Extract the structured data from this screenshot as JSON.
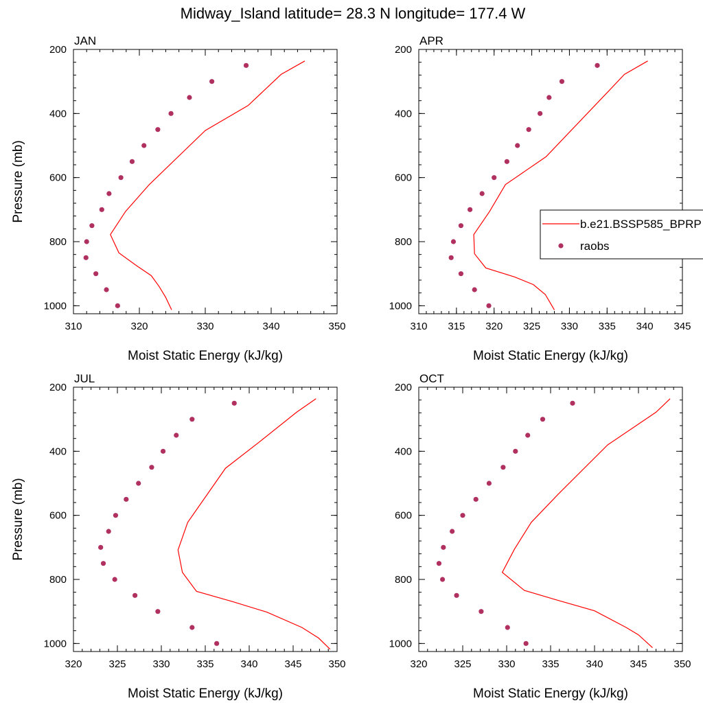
{
  "title": "Midway_Island  latitude= 28.3 N longitude= 177.4 W",
  "colors": {
    "model_line": "#ff0000",
    "raobs_marker": "#b03060",
    "axis": "#000000"
  },
  "legend": {
    "entries": [
      {
        "label": "b.e21.BSSP585_BPRP",
        "style": "line"
      },
      {
        "label": "raobs",
        "style": "marker"
      }
    ]
  },
  "chart_data": [
    {
      "type": "line",
      "panel": "JAN",
      "xlabel": "Moist Static Energy (kJ/kg)",
      "ylabel": "Pressure (mb)",
      "xlim": [
        310,
        350
      ],
      "ylim": [
        200,
        1025
      ],
      "y_reversed": true,
      "xticks": [
        310,
        320,
        330,
        340,
        350
      ],
      "yticks": [
        200,
        400,
        600,
        800,
        1000
      ],
      "series": [
        {
          "name": "b.e21.BSSP585_BPRP",
          "style": "line",
          "x": [
            345.1,
            341.5,
            336.5,
            330.0,
            321.5,
            317.9,
            315.6,
            316.9,
            319.5,
            321.8,
            323.0,
            324.0,
            324.9
          ],
          "y": [
            236,
            278,
            375,
            453,
            622,
            706,
            778,
            835,
            874,
            906,
            940,
            974,
            1013
          ]
        },
        {
          "name": "raobs",
          "style": "marker",
          "x": [
            336.2,
            331.0,
            327.6,
            324.8,
            322.8,
            320.7,
            318.9,
            317.2,
            315.4,
            314.3,
            312.8,
            312.0,
            311.9,
            313.4,
            315.0,
            316.7
          ],
          "y": [
            250,
            300,
            350,
            400,
            450,
            500,
            550,
            600,
            650,
            700,
            750,
            800,
            850,
            900,
            950,
            1000
          ]
        }
      ]
    },
    {
      "type": "line",
      "panel": "APR",
      "xlabel": "Moist Static Energy (kJ/kg)",
      "ylabel": "",
      "xlim": [
        310,
        345
      ],
      "ylim": [
        200,
        1025
      ],
      "y_reversed": true,
      "xticks": [
        310,
        315,
        320,
        325,
        330,
        335,
        340,
        345
      ],
      "yticks": [
        200,
        400,
        600,
        800,
        1000
      ],
      "series": [
        {
          "name": "b.e21.BSSP585_BPRP",
          "style": "line",
          "x": [
            340.4,
            337.3,
            335.2,
            326.9,
            321.5,
            319.4,
            317.3,
            317.4,
            318.9,
            322.7,
            325.2,
            326.8,
            328.0
          ],
          "y": [
            236,
            278,
            330,
            535,
            622,
            706,
            778,
            838,
            882,
            910,
            934,
            965,
            1013
          ]
        },
        {
          "name": "raobs",
          "style": "marker",
          "x": [
            333.7,
            329.0,
            327.3,
            326.1,
            324.6,
            323.1,
            321.7,
            320.0,
            318.4,
            316.8,
            315.6,
            314.6,
            314.3,
            315.6,
            317.4,
            319.3
          ],
          "y": [
            250,
            300,
            350,
            400,
            450,
            500,
            550,
            600,
            650,
            700,
            750,
            800,
            850,
            900,
            950,
            1000
          ]
        }
      ]
    },
    {
      "type": "line",
      "panel": "JUL",
      "xlabel": "Moist Static Energy (kJ/kg)",
      "ylabel": "Pressure (mb)",
      "xlim": [
        320,
        350
      ],
      "ylim": [
        200,
        1025
      ],
      "y_reversed": true,
      "xticks": [
        320,
        325,
        330,
        335,
        340,
        345,
        350
      ],
      "yticks": [
        200,
        400,
        600,
        800,
        1000
      ],
      "series": [
        {
          "name": "b.e21.BSSP585_BPRP",
          "style": "line",
          "x": [
            347.6,
            345.4,
            341.1,
            337.3,
            333.0,
            331.9,
            332.4,
            334.0,
            338.2,
            342.0,
            346.0,
            347.9,
            349.2
          ],
          "y": [
            236,
            278,
            372,
            453,
            622,
            708,
            778,
            837,
            870,
            902,
            950,
            983,
            1018
          ]
        },
        {
          "name": "raobs",
          "style": "marker",
          "x": [
            338.3,
            333.5,
            331.7,
            330.2,
            328.9,
            327.4,
            326.0,
            324.8,
            324.0,
            323.1,
            323.4,
            324.7,
            327.0,
            329.6,
            333.5,
            336.3
          ],
          "y": [
            250,
            300,
            350,
            400,
            450,
            500,
            550,
            600,
            650,
            700,
            750,
            800,
            850,
            900,
            950,
            1000
          ]
        }
      ]
    },
    {
      "type": "line",
      "panel": "OCT",
      "xlabel": "Moist Static Energy (kJ/kg)",
      "ylabel": "",
      "xlim": [
        320,
        350
      ],
      "ylim": [
        200,
        1025
      ],
      "y_reversed": true,
      "xticks": [
        320,
        325,
        330,
        335,
        340,
        345,
        350
      ],
      "yticks": [
        200,
        400,
        600,
        800,
        1000
      ],
      "series": [
        {
          "name": "b.e21.BSSP585_BPRP",
          "style": "line",
          "x": [
            348.6,
            347.0,
            341.5,
            335.9,
            332.8,
            330.9,
            329.5,
            332.0,
            335.8,
            340.0,
            343.6,
            345.0,
            346.6
          ],
          "y": [
            236,
            278,
            380,
            533,
            622,
            705,
            778,
            834,
            865,
            898,
            950,
            973,
            1013
          ]
        },
        {
          "name": "raobs",
          "style": "marker",
          "x": [
            337.5,
            334.1,
            332.4,
            331.0,
            329.6,
            328.0,
            326.5,
            325.0,
            323.8,
            322.8,
            322.3,
            322.7,
            324.3,
            327.1,
            330.1,
            332.2
          ],
          "y": [
            250,
            300,
            350,
            400,
            450,
            500,
            550,
            600,
            650,
            700,
            750,
            800,
            850,
            900,
            950,
            1000
          ]
        }
      ]
    }
  ]
}
